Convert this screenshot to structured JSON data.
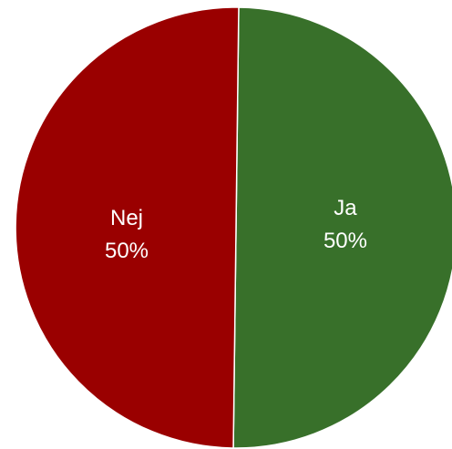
{
  "chart_data": {
    "type": "pie",
    "categories": [
      "Ja",
      "Nej"
    ],
    "values": [
      50,
      50
    ],
    "value_labels": [
      "50%",
      "50%"
    ],
    "colors": [
      "#38702a",
      "#9a0000"
    ]
  }
}
